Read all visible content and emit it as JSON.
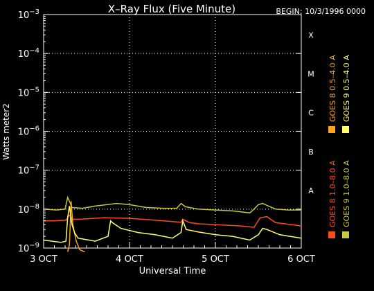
{
  "chart_data": {
    "type": "line",
    "title": "X–Ray Flux (Five Minute)",
    "begin_label": "BEGIN: 10/3/1996 0000",
    "xlabel": "Universal Time",
    "ylabel": "Watts meter2",
    "x_ticks": [
      "3 OCT",
      "4 OCT",
      "5 OCT",
      "6 OCT"
    ],
    "x_range_days": [
      0,
      3
    ],
    "y_scale": "log",
    "y_range": [
      1e-09,
      0.001
    ],
    "y_ticks": [
      {
        "base": "10",
        "exp": "−9",
        "value": 1e-09
      },
      {
        "base": "10",
        "exp": "−8",
        "value": 1e-08
      },
      {
        "base": "10",
        "exp": "−7",
        "value": 1e-07
      },
      {
        "base": "10",
        "exp": "−6",
        "value": 1e-06
      },
      {
        "base": "10",
        "exp": "−5",
        "value": 1e-05
      },
      {
        "base": "10",
        "exp": "−4",
        "value": 0.0001
      },
      {
        "base": "10",
        "exp": "−3",
        "value": 0.001
      }
    ],
    "flare_classes": [
      {
        "label": "X",
        "value": 0.0003
      },
      {
        "label": "M",
        "value": 3e-05
      },
      {
        "label": "C",
        "value": 3e-06
      },
      {
        "label": "B",
        "value": 3e-07
      },
      {
        "label": "A",
        "value": 3e-08
      }
    ],
    "grid": "dotted",
    "legend_position": "right",
    "series": [
      {
        "name": "GOES 8  1.0–8.0 A",
        "color": "#ff4a1c",
        "x": [
          0,
          0.12,
          0.26,
          0.3,
          0.34,
          0.42,
          0.7,
          1.0,
          1.2,
          1.5,
          1.6,
          1.62,
          1.7,
          1.8,
          2.0,
          2.3,
          2.45,
          2.52,
          2.6,
          2.7,
          3.0
        ],
        "y": [
          5e-09,
          5e-09,
          5.2e-09,
          7e-09,
          5.5e-09,
          5.5e-09,
          6e-09,
          5.8e-09,
          5.4e-09,
          4.8e-09,
          4.6e-09,
          5.5e-09,
          4.5e-09,
          4.2e-09,
          4e-09,
          3.7e-09,
          3.4e-09,
          6e-09,
          6.4e-09,
          4.5e-09,
          3.7e-09
        ]
      },
      {
        "name": "GOES 8  0.5–4.0 A",
        "color": "#ffa21c",
        "x": [
          0.28,
          0.3,
          0.32,
          0.34,
          0.38,
          0.42,
          0.48
        ],
        "y": [
          8e-10,
          1.2e-09,
          1.6e-08,
          4e-09,
          1.5e-09,
          9e-10,
          8e-10
        ]
      },
      {
        "name": "GOES 9  1.0–8.0 A",
        "color": "#c8c83a",
        "x": [
          0,
          0.15,
          0.25,
          0.28,
          0.3,
          0.33,
          0.45,
          0.6,
          0.85,
          1.0,
          1.2,
          1.4,
          1.55,
          1.6,
          1.65,
          1.8,
          2.0,
          2.2,
          2.3,
          2.4,
          2.45,
          2.5,
          2.55,
          2.6,
          2.7,
          2.85,
          3.0
        ],
        "y": [
          1e-08,
          9.5e-09,
          1e-08,
          2e-08,
          1.6e-08,
          1.1e-08,
          1.05e-08,
          1.2e-08,
          1.4e-08,
          1.3e-08,
          1.1e-08,
          1.05e-08,
          1.05e-08,
          1.4e-08,
          1.15e-08,
          1e-08,
          9.5e-09,
          9e-09,
          8.5e-09,
          8e-09,
          1e-08,
          1.3e-08,
          1.4e-08,
          1.25e-08,
          1e-08,
          9.5e-09,
          9.5e-09
        ]
      },
      {
        "name": "GOES 9  0.5–4.0 A",
        "color": "#ffff6a",
        "x": [
          0,
          0.2,
          0.26,
          0.28,
          0.3,
          0.33,
          0.36,
          0.4,
          0.6,
          0.75,
          0.78,
          0.8,
          0.9,
          1.1,
          1.3,
          1.5,
          1.6,
          1.62,
          1.66,
          1.8,
          2.0,
          2.2,
          2.4,
          2.5,
          2.55,
          2.6,
          2.75,
          3.0
        ],
        "y": [
          1.6e-09,
          1.4e-09,
          1.5e-09,
          6e-09,
          1.2e-08,
          4e-09,
          2.5e-09,
          1.8e-09,
          1.5e-09,
          2e-09,
          5e-09,
          4.5e-09,
          3.2e-09,
          2.5e-09,
          2.2e-09,
          1.8e-09,
          2.5e-09,
          5e-09,
          3e-09,
          2.6e-09,
          2.2e-09,
          2e-09,
          1.6e-09,
          2.2e-09,
          3.2e-09,
          3e-09,
          2.2e-09,
          1.8e-09
        ]
      }
    ]
  }
}
